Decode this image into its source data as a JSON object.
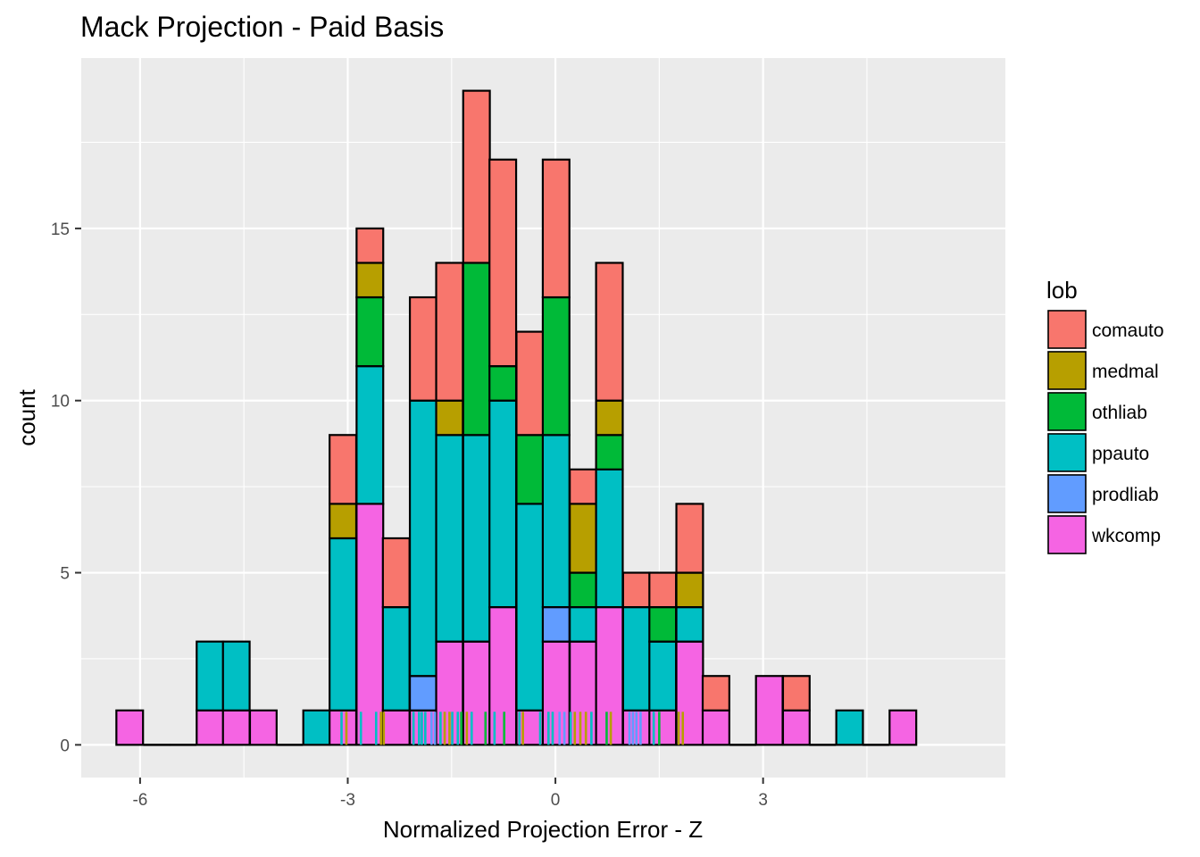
{
  "chart_data": {
    "type": "bar",
    "subtype": "stacked-histogram",
    "title": "Mack Projection - Paid Basis",
    "xlabel": "Normalized Projection Error - Z",
    "ylabel": "count",
    "xlim": [
      -6.85,
      6.5
    ],
    "ylim": [
      -0.95,
      19.95
    ],
    "bin_width": 0.385,
    "x_ticks": [
      -6,
      -3,
      0,
      3
    ],
    "y_ticks": [
      0,
      5,
      10,
      15
    ],
    "grid": true,
    "legend": {
      "title": "lob",
      "position": "right"
    },
    "series": [
      {
        "name": "comauto",
        "color": "#F8766D"
      },
      {
        "name": "medmal",
        "color": "#B79F00"
      },
      {
        "name": "othliab",
        "color": "#00BA38"
      },
      {
        "name": "ppauto",
        "color": "#00BFC4"
      },
      {
        "name": "prodliab",
        "color": "#619CFF"
      },
      {
        "name": "wkcomp",
        "color": "#F564E3"
      }
    ],
    "bins": [
      {
        "x": -6.15,
        "counts": [
          0,
          0,
          0,
          0,
          0,
          1
        ]
      },
      {
        "x": -5.76,
        "counts": [
          0,
          0,
          0,
          0,
          0,
          0
        ]
      },
      {
        "x": -5.38,
        "counts": [
          0,
          0,
          0,
          0,
          0,
          0
        ]
      },
      {
        "x": -4.99,
        "counts": [
          0,
          0,
          0,
          2,
          0,
          1
        ]
      },
      {
        "x": -4.61,
        "counts": [
          0,
          0,
          0,
          2,
          0,
          1
        ]
      },
      {
        "x": -4.22,
        "counts": [
          0,
          0,
          0,
          0,
          0,
          1
        ]
      },
      {
        "x": -3.84,
        "counts": [
          0,
          0,
          0,
          0,
          0,
          0
        ]
      },
      {
        "x": -3.45,
        "counts": [
          0,
          0,
          0,
          1,
          0,
          0
        ]
      },
      {
        "x": -3.07,
        "counts": [
          2,
          1,
          0,
          5,
          0,
          1
        ]
      },
      {
        "x": -2.68,
        "counts": [
          1,
          1,
          2,
          4,
          0,
          7
        ]
      },
      {
        "x": -2.3,
        "counts": [
          2,
          0,
          0,
          3,
          0,
          1
        ]
      },
      {
        "x": -1.91,
        "counts": [
          3,
          0,
          0,
          8,
          1,
          1
        ]
      },
      {
        "x": -1.53,
        "counts": [
          4,
          1,
          0,
          6,
          0,
          3
        ]
      },
      {
        "x": -1.14,
        "counts": [
          5,
          0,
          5,
          6,
          0,
          3
        ]
      },
      {
        "x": -0.76,
        "counts": [
          6,
          0,
          1,
          6,
          0,
          4
        ]
      },
      {
        "x": -0.37,
        "counts": [
          3,
          0,
          2,
          6,
          0,
          1
        ]
      },
      {
        "x": 0.01,
        "counts": [
          4,
          0,
          4,
          5,
          1,
          3
        ]
      },
      {
        "x": 0.4,
        "counts": [
          1,
          2,
          1,
          1,
          0,
          3
        ]
      },
      {
        "x": 0.78,
        "counts": [
          4,
          1,
          1,
          4,
          0,
          4
        ]
      },
      {
        "x": 1.17,
        "counts": [
          1,
          0,
          0,
          3,
          0,
          1
        ]
      },
      {
        "x": 1.55,
        "counts": [
          1,
          0,
          1,
          2,
          0,
          1
        ]
      },
      {
        "x": 1.94,
        "counts": [
          2,
          1,
          0,
          1,
          0,
          3
        ]
      },
      {
        "x": 2.32,
        "counts": [
          1,
          0,
          0,
          0,
          0,
          1
        ]
      },
      {
        "x": 2.71,
        "counts": [
          0,
          0,
          0,
          0,
          0,
          0
        ]
      },
      {
        "x": 3.09,
        "counts": [
          0,
          0,
          0,
          0,
          0,
          2
        ]
      },
      {
        "x": 3.48,
        "counts": [
          1,
          0,
          0,
          0,
          0,
          1
        ]
      },
      {
        "x": 3.86,
        "counts": [
          0,
          0,
          0,
          0,
          0,
          0
        ]
      },
      {
        "x": 4.25,
        "counts": [
          0,
          0,
          0,
          1,
          0,
          0
        ]
      },
      {
        "x": 4.63,
        "counts": [
          0,
          0,
          0,
          0,
          0,
          0
        ]
      },
      {
        "x": 5.02,
        "counts": [
          0,
          0,
          0,
          0,
          0,
          1
        ]
      }
    ],
    "rug": [
      {
        "x": -3.02,
        "series": "medmal"
      },
      {
        "x": -3.09,
        "series": "ppauto"
      },
      {
        "x": -2.81,
        "series": "ppauto"
      },
      {
        "x": -2.59,
        "series": "ppauto"
      },
      {
        "x": -2.52,
        "series": "medmal"
      },
      {
        "x": -2.48,
        "series": "medmal"
      },
      {
        "x": -2.05,
        "series": "ppauto"
      },
      {
        "x": -1.97,
        "series": "ppauto"
      },
      {
        "x": -1.93,
        "series": "ppauto"
      },
      {
        "x": -1.88,
        "series": "ppauto"
      },
      {
        "x": -1.79,
        "series": "prodliab"
      },
      {
        "x": -1.74,
        "series": "prodliab"
      },
      {
        "x": -1.66,
        "series": "ppauto"
      },
      {
        "x": -1.6,
        "series": "medmal"
      },
      {
        "x": -1.53,
        "series": "medmal"
      },
      {
        "x": -1.49,
        "series": "ppauto"
      },
      {
        "x": -1.41,
        "series": "ppauto"
      },
      {
        "x": -1.36,
        "series": "othliab"
      },
      {
        "x": -1.28,
        "series": "medmal"
      },
      {
        "x": -1.21,
        "series": "ppauto"
      },
      {
        "x": -1.01,
        "series": "othliab"
      },
      {
        "x": -0.88,
        "series": "ppauto"
      },
      {
        "x": -0.74,
        "series": "othliab"
      },
      {
        "x": -0.52,
        "series": "ppauto"
      },
      {
        "x": -0.47,
        "series": "medmal"
      },
      {
        "x": -0.22,
        "series": "ppauto"
      },
      {
        "x": -0.1,
        "series": "ppauto"
      },
      {
        "x": -0.04,
        "series": "ppauto"
      },
      {
        "x": 0.06,
        "series": "prodliab"
      },
      {
        "x": 0.13,
        "series": "prodliab"
      },
      {
        "x": 0.22,
        "series": "ppauto"
      },
      {
        "x": 0.28,
        "series": "medmal"
      },
      {
        "x": 0.36,
        "series": "medmal"
      },
      {
        "x": 0.44,
        "series": "medmal"
      },
      {
        "x": 0.52,
        "series": "ppauto"
      },
      {
        "x": 0.74,
        "series": "othliab"
      },
      {
        "x": 0.8,
        "series": "medmal"
      },
      {
        "x": 1.07,
        "series": "prodliab"
      },
      {
        "x": 1.12,
        "series": "prodliab"
      },
      {
        "x": 1.17,
        "series": "prodliab"
      },
      {
        "x": 1.23,
        "series": "prodliab"
      },
      {
        "x": 1.42,
        "series": "ppauto"
      },
      {
        "x": 1.5,
        "series": "othliab"
      },
      {
        "x": 1.78,
        "series": "medmal"
      },
      {
        "x": 1.84,
        "series": "medmal"
      }
    ]
  }
}
